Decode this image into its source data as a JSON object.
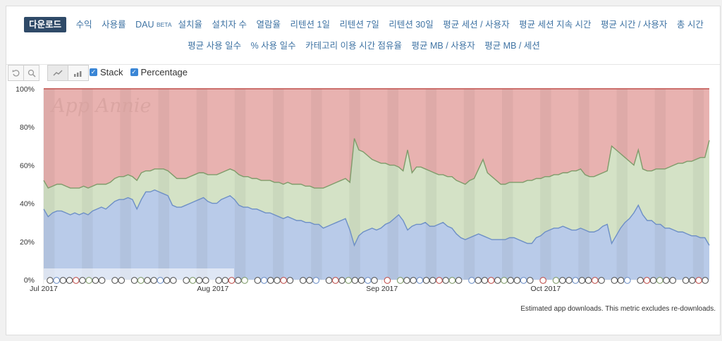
{
  "tabs_row1": [
    "다운로드",
    "수익",
    "사용률",
    "DAU",
    "설치율",
    "설치자 수",
    "열람율",
    "리텐션 1일",
    "리텐션 7일",
    "리텐션 30일",
    "평균 세션 / 사용자",
    "평균 세션 지속 시간",
    "평균 시간 / 사용자",
    "총 시간"
  ],
  "beta_label": "BETA",
  "tabs_row2": [
    "평균 사용 일수",
    "% 사용 일수",
    "카테고리 이용 시간 점유율",
    "평균 MB / 사용자",
    "평균 MB / 세션"
  ],
  "toolbar": {
    "reset_icon": "undo-icon",
    "zoom_icon": "zoom-icon",
    "line_icon": "line-chart-icon",
    "bar_icon": "bar-chart-icon"
  },
  "options": {
    "stack_label": "Stack",
    "percentage_label": "Percentage",
    "stack_checked": true,
    "percentage_checked": true
  },
  "watermark": "App Annie",
  "footnote": "Estimated app downloads. This metric excludes re-downloads.",
  "chart_data": {
    "type": "area",
    "stacked": true,
    "percentage": true,
    "x_start": "2017-07-01",
    "x_end": "2017-10-31",
    "x_ticks": [
      "Jul 2017",
      "Aug 2017",
      "Sep 2017",
      "Oct 2017"
    ],
    "y_ticks": [
      "0%",
      "20%",
      "40%",
      "60%",
      "80%",
      "100%"
    ],
    "ylim": [
      0,
      100
    ],
    "colors": {
      "blue": "#b9cbe9",
      "blue_line": "#6d8fc6",
      "green": "#d4e2c6",
      "green_line": "#7f9b6a",
      "red": "#e8b2b0",
      "red_line": "#c0504d"
    },
    "series": [
      {
        "values": [
          37,
          33,
          35,
          36,
          36,
          35,
          34,
          35,
          34,
          35,
          34,
          36,
          37,
          38,
          37,
          39,
          41,
          42,
          42,
          43,
          42,
          37,
          42,
          46,
          46,
          47,
          46,
          45,
          44,
          39,
          38,
          38,
          39,
          40,
          41,
          42,
          43,
          41,
          40,
          40,
          42,
          43,
          44,
          42,
          39,
          38,
          38,
          37,
          37,
          36,
          35,
          35,
          34,
          33,
          32,
          33,
          32,
          31,
          31,
          30,
          30,
          29,
          29,
          27,
          28,
          29,
          30,
          31,
          32,
          26,
          18,
          23,
          25,
          26,
          27,
          26,
          27,
          29,
          30,
          32,
          34,
          31,
          26,
          28,
          29,
          29,
          30,
          28,
          28,
          29,
          30,
          28,
          27,
          24,
          22,
          21,
          22,
          23,
          24,
          23,
          22,
          21,
          21,
          21,
          21,
          22,
          22,
          21,
          20,
          19,
          19,
          22,
          23,
          25,
          26,
          27,
          27,
          28,
          27,
          26,
          26,
          27,
          26,
          25,
          25,
          26,
          28,
          29,
          19,
          23,
          27,
          30,
          32,
          35,
          39,
          34,
          31,
          31,
          29,
          29,
          27,
          27,
          26,
          25,
          25,
          24,
          23,
          23,
          22,
          22,
          18
        ]
      },
      {
        "values": [
          52,
          48,
          49,
          50,
          50,
          49,
          48,
          48,
          48,
          49,
          48,
          49,
          50,
          50,
          50,
          51,
          53,
          54,
          54,
          55,
          54,
          52,
          56,
          57,
          57,
          58,
          58,
          58,
          57,
          55,
          53,
          53,
          53,
          54,
          55,
          56,
          56,
          55,
          55,
          55,
          56,
          57,
          58,
          57,
          55,
          54,
          54,
          53,
          53,
          52,
          52,
          52,
          51,
          51,
          50,
          51,
          50,
          50,
          50,
          49,
          49,
          48,
          48,
          48,
          49,
          50,
          51,
          52,
          53,
          51,
          74,
          68,
          67,
          65,
          63,
          62,
          61,
          61,
          60,
          60,
          59,
          57,
          68,
          56,
          59,
          59,
          58,
          57,
          56,
          55,
          55,
          54,
          54,
          52,
          51,
          50,
          52,
          53,
          58,
          63,
          56,
          54,
          52,
          50,
          50,
          51,
          51,
          51,
          51,
          52,
          52,
          53,
          53,
          54,
          54,
          55,
          55,
          56,
          56,
          57,
          57,
          58,
          55,
          54,
          54,
          55,
          56,
          57,
          70,
          68,
          66,
          64,
          62,
          60,
          68,
          58,
          57,
          57,
          58,
          58,
          58,
          59,
          60,
          61,
          61,
          62,
          62,
          63,
          64,
          64,
          73
        ]
      },
      {
        "values": [
          100,
          100,
          100,
          100,
          100,
          100,
          100,
          100,
          100,
          100,
          100,
          100,
          100,
          100,
          100,
          100,
          100,
          100,
          100,
          100,
          100,
          100,
          100,
          100,
          100,
          100,
          100,
          100,
          100,
          100,
          100,
          100,
          100,
          100,
          100,
          100,
          100,
          100,
          100,
          100,
          100,
          100,
          100,
          100,
          100,
          100,
          100,
          100,
          100,
          100,
          100,
          100,
          100,
          100,
          100,
          100,
          100,
          100,
          100,
          100,
          100,
          100,
          100,
          100,
          100,
          100,
          100,
          100,
          100,
          100,
          100,
          100,
          100,
          100,
          100,
          100,
          100,
          100,
          100,
          100,
          100,
          100,
          100,
          100,
          100,
          100,
          100,
          100,
          100,
          100,
          100,
          100,
          100,
          100,
          100,
          100,
          100,
          100,
          100,
          100,
          100,
          100,
          100,
          100,
          100,
          100,
          100,
          100,
          100,
          100,
          100,
          100,
          100,
          100,
          100,
          100,
          100,
          100,
          100,
          100,
          100,
          100,
          100,
          100,
          100,
          100,
          100,
          100,
          100,
          100,
          100,
          100,
          100,
          100,
          100,
          100,
          100,
          100,
          100,
          100,
          100,
          100,
          100,
          100,
          100,
          100,
          100,
          100,
          100,
          100,
          100
        ]
      }
    ]
  }
}
